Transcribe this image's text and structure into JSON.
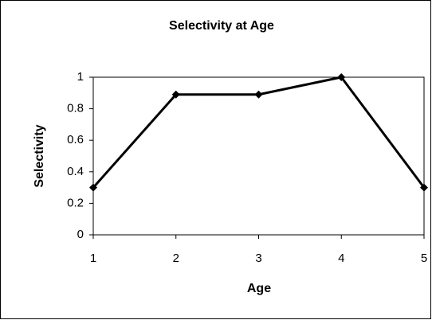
{
  "chart_data": {
    "type": "line",
    "title": "Selectivity at Age",
    "x_label": "Age",
    "y_label": "Selectivity",
    "x": [
      1,
      2,
      3,
      4,
      5
    ],
    "series": [
      {
        "name": "Selectivity",
        "color": "#000000",
        "values": [
          0.3,
          0.89,
          0.89,
          1.0,
          0.3
        ]
      }
    ],
    "xlim": [
      1,
      5
    ],
    "xticks": [
      1,
      2,
      3,
      4,
      5
    ],
    "ylim": [
      0,
      1
    ],
    "yticks": [
      0,
      0.2,
      0.4,
      0.6,
      0.8,
      1
    ],
    "grid": false,
    "marker": "diamond"
  }
}
